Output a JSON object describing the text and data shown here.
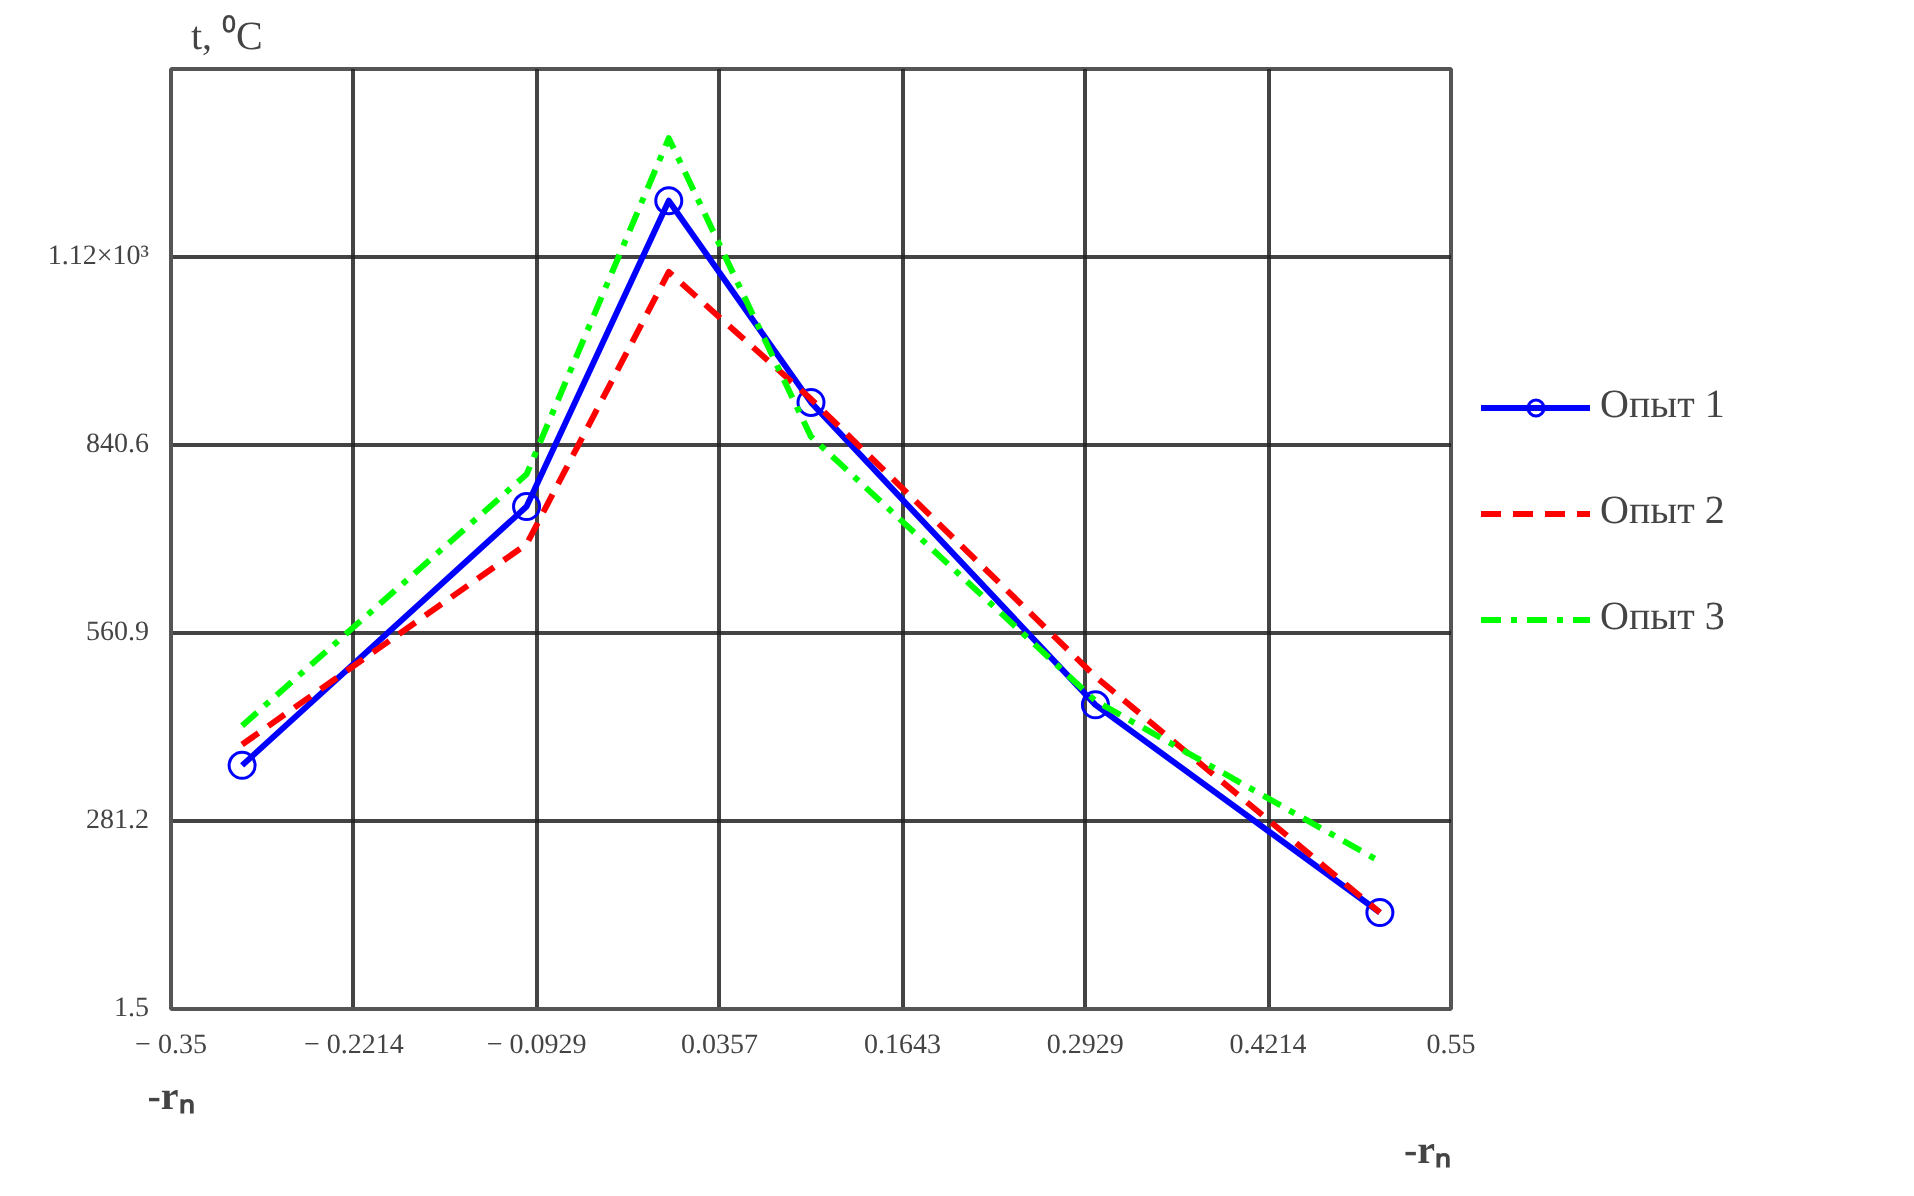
{
  "chart_data": {
    "type": "line",
    "ylabel": "t, ⁰C",
    "xlabel": "-rₙ",
    "annotations": [
      "-rₙ"
    ],
    "x": [
      -0.3,
      -0.1,
      0.0,
      0.1,
      0.3,
      0.5
    ],
    "series": [
      {
        "name": "Опыт 1",
        "color": "#0000ff",
        "values": [
          364,
          749,
          1204,
          904,
          454,
          145
        ],
        "marker": "circle",
        "line_style": "solid"
      },
      {
        "name": "Опыт 2",
        "color": "#ff0000",
        "values": [
          395,
          693,
          1098,
          909,
          496,
          145
        ],
        "marker": "none",
        "line_style": "dashed"
      },
      {
        "name": "Опыт 3",
        "color": "#00ff00",
        "values": [
          423,
          797,
          1297,
          853,
          460,
          221
        ],
        "marker": "none",
        "line_style": "dotted"
      }
    ],
    "xlim": [
      -0.35,
      0.55
    ],
    "ylim": [
      1.5,
      1400
    ],
    "xticks": [
      {
        "value": -0.35,
        "label": "− 0.35"
      },
      {
        "value": -0.2214,
        "label": "− 0.2214"
      },
      {
        "value": -0.0929,
        "label": "− 0.0929"
      },
      0.0357,
      0.1643,
      0.2929,
      0.4214,
      0.55
    ],
    "yticks": [
      1.5,
      281.2,
      560.9,
      840.6,
      {
        "value": 1120.3,
        "label": "1.12×10³"
      }
    ],
    "grid": true,
    "legend": "right"
  }
}
